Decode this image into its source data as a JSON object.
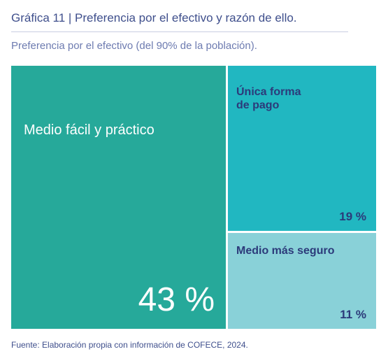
{
  "title": "Gráfica 11 | Preferencia por el efectivo y razón de ello.",
  "subtitle": "Preferencia por el efectivo (del 90% de la población).",
  "source": "Fuente: Elaboración propia con información de COFECE, 2024.",
  "chart_data": {
    "type": "treemap",
    "categories": [
      "Medio fácil y práctico",
      "Única forma\nde pago",
      "Medio más seguro"
    ],
    "values": [
      43,
      19,
      11
    ],
    "value_labels": [
      "43 %",
      "19 %",
      "11 %"
    ],
    "colors": [
      "#26a99a",
      "#21b7c1",
      "#89d1d8"
    ],
    "label_colors": [
      "#ffffff",
      "#2c3a7a",
      "#2c3a7a"
    ]
  }
}
